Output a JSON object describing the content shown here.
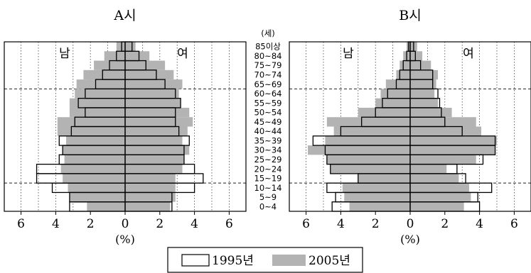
{
  "chart_data": [
    {
      "type": "bar",
      "title": "A시",
      "xlabel": "(%)",
      "xlim": [
        -6,
        6
      ],
      "xticks": [
        "6",
        "4",
        "2",
        "0",
        "2",
        "4",
        "6"
      ],
      "male_label": "남",
      "female_label": "여",
      "series": [
        {
          "name": "1995년",
          "male": [
            3.2,
            3.2,
            4.2,
            5.1,
            5.1,
            3.8,
            3.6,
            3.8,
            3.1,
            2.9,
            2.3,
            2.7,
            2.3,
            1.7,
            1.3,
            0.9,
            0.5,
            0.2
          ],
          "female": [
            2.7,
            2.7,
            4.0,
            4.5,
            4.0,
            3.4,
            3.4,
            3.7,
            3.1,
            2.9,
            2.9,
            3.2,
            2.9,
            2.3,
            1.8,
            1.2,
            0.8,
            0.4
          ]
        },
        {
          "name": "2005년",
          "male": [
            2.2,
            3.2,
            3.3,
            3.6,
            3.7,
            3.5,
            3.6,
            3.4,
            3.9,
            3.9,
            3.2,
            3.2,
            2.9,
            2.8,
            2.4,
            1.8,
            1.2,
            0.5
          ],
          "female": [
            2.6,
            2.9,
            2.9,
            2.9,
            3.3,
            3.4,
            3.7,
            3.3,
            3.6,
            3.9,
            3.7,
            3.2,
            3.1,
            3.3,
            2.8,
            2.3,
            1.4,
            0.6
          ]
        }
      ]
    },
    {
      "type": "bar",
      "title": "B시",
      "xlabel": "(%)",
      "xlim": [
        -6,
        6
      ],
      "xticks": [
        "6",
        "4",
        "2",
        "0",
        "2",
        "4",
        "6"
      ],
      "male_label": "남",
      "female_label": "여",
      "series": [
        {
          "name": "1995년",
          "male": [
            4.5,
            4.3,
            4.8,
            3.0,
            4.6,
            4.8,
            4.9,
            5.6,
            4.0,
            2.8,
            2.0,
            1.6,
            1.3,
            0.8,
            0.6,
            0.4,
            0.2,
            0.1
          ],
          "female": [
            4.0,
            3.9,
            4.7,
            3.2,
            2.7,
            4.2,
            4.9,
            4.9,
            3.0,
            2.0,
            1.8,
            1.7,
            1.6,
            1.3,
            1.3,
            0.6,
            0.3,
            0.2
          ]
        },
        {
          "name": "2005년",
          "male": [
            3.5,
            3.8,
            3.9,
            3.0,
            4.6,
            4.8,
            5.9,
            4.9,
            4.4,
            4.8,
            3.0,
            2.0,
            1.7,
            1.4,
            0.8,
            0.6,
            0.4,
            0.2
          ],
          "female": [
            3.1,
            3.5,
            3.4,
            2.8,
            2.1,
            3.8,
            4.9,
            5.0,
            4.1,
            3.8,
            2.4,
            1.6,
            1.4,
            1.5,
            1.6,
            1.2,
            0.7,
            0.4
          ]
        }
      ]
    }
  ],
  "age_unit": "(세)",
  "age_groups": [
    "0~4",
    "5~9",
    "10~14",
    "15~19",
    "20~24",
    "25~29",
    "30~34",
    "35~39",
    "40~44",
    "45~49",
    "50~54",
    "55~59",
    "60~64",
    "65~69",
    "70~74",
    "75~79",
    "80~84",
    "85이상"
  ],
  "legend": {
    "items": [
      {
        "label": "1995년",
        "style": "outline",
        "color": "#000000"
      },
      {
        "label": "2005년",
        "style": "fill",
        "color": "#b3b3b3"
      }
    ]
  },
  "colors": {
    "fill_2005": "#b3b3b3",
    "outline_1995": "#000000"
  }
}
